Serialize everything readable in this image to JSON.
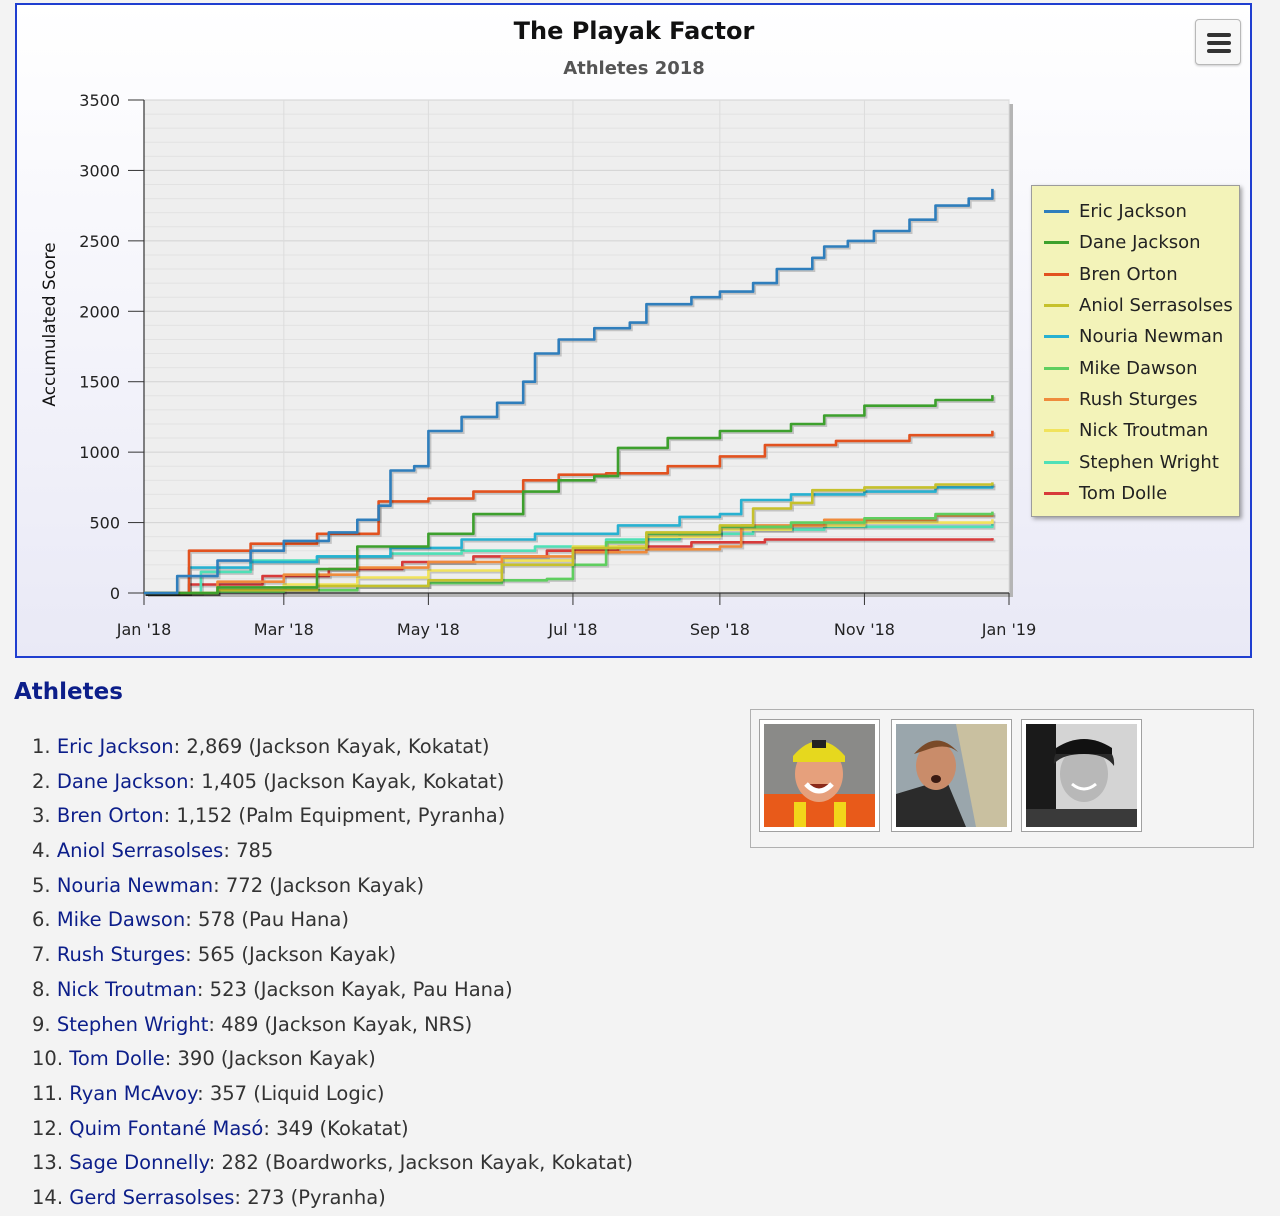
{
  "chart_box": {
    "title": "The Playak Factor",
    "subtitle": "Athletes 2018",
    "menu_icon": "hamburger-menu-icon"
  },
  "chart_data": {
    "type": "line",
    "title": "The Playak Factor",
    "subtitle": "Athletes 2018",
    "xlabel": "",
    "ylabel": "Accumulated Score",
    "x_ticks": [
      "Jan '18",
      "Mar '18",
      "May '18",
      "Jul '18",
      "Sep '18",
      "Nov '18",
      "Jan '19"
    ],
    "y_ticks": [
      0,
      500,
      1000,
      1500,
      2000,
      2500,
      3000,
      3500
    ],
    "ylim": [
      0,
      3500
    ],
    "xlim": [
      "2018-01-01",
      "2019-01-01"
    ],
    "grid": true,
    "legend_position": "right",
    "series": [
      {
        "name": "Eric Jackson",
        "color": "#2f7ebc",
        "points": [
          [
            "2018-01-01",
            0
          ],
          [
            "2018-01-15",
            120
          ],
          [
            "2018-02-01",
            230
          ],
          [
            "2018-02-15",
            300
          ],
          [
            "2018-03-01",
            370
          ],
          [
            "2018-03-20",
            430
          ],
          [
            "2018-04-01",
            520
          ],
          [
            "2018-04-10",
            620
          ],
          [
            "2018-04-15",
            870
          ],
          [
            "2018-04-25",
            900
          ],
          [
            "2018-05-01",
            1150
          ],
          [
            "2018-05-15",
            1250
          ],
          [
            "2018-05-30",
            1350
          ],
          [
            "2018-06-10",
            1500
          ],
          [
            "2018-06-15",
            1700
          ],
          [
            "2018-06-25",
            1800
          ],
          [
            "2018-07-10",
            1880
          ],
          [
            "2018-07-25",
            1920
          ],
          [
            "2018-08-01",
            2050
          ],
          [
            "2018-08-20",
            2100
          ],
          [
            "2018-09-01",
            2140
          ],
          [
            "2018-09-15",
            2200
          ],
          [
            "2018-09-25",
            2300
          ],
          [
            "2018-10-10",
            2380
          ],
          [
            "2018-10-15",
            2460
          ],
          [
            "2018-10-25",
            2500
          ],
          [
            "2018-11-05",
            2570
          ],
          [
            "2018-11-20",
            2650
          ],
          [
            "2018-12-01",
            2750
          ],
          [
            "2018-12-15",
            2800
          ],
          [
            "2018-12-25",
            2869
          ]
        ]
      },
      {
        "name": "Dane Jackson",
        "color": "#3da02d",
        "points": [
          [
            "2018-01-01",
            0
          ],
          [
            "2018-02-01",
            40
          ],
          [
            "2018-03-15",
            170
          ],
          [
            "2018-04-01",
            330
          ],
          [
            "2018-05-01",
            420
          ],
          [
            "2018-05-20",
            560
          ],
          [
            "2018-06-10",
            720
          ],
          [
            "2018-06-25",
            800
          ],
          [
            "2018-07-10",
            830
          ],
          [
            "2018-07-20",
            1030
          ],
          [
            "2018-08-10",
            1100
          ],
          [
            "2018-09-01",
            1150
          ],
          [
            "2018-10-01",
            1200
          ],
          [
            "2018-10-15",
            1260
          ],
          [
            "2018-11-01",
            1330
          ],
          [
            "2018-12-01",
            1370
          ],
          [
            "2018-12-25",
            1405
          ]
        ]
      },
      {
        "name": "Bren Orton",
        "color": "#e2521f",
        "points": [
          [
            "2018-01-01",
            0
          ],
          [
            "2018-01-20",
            300
          ],
          [
            "2018-02-15",
            350
          ],
          [
            "2018-03-15",
            420
          ],
          [
            "2018-04-10",
            650
          ],
          [
            "2018-05-01",
            670
          ],
          [
            "2018-05-20",
            720
          ],
          [
            "2018-06-10",
            800
          ],
          [
            "2018-06-25",
            840
          ],
          [
            "2018-07-15",
            850
          ],
          [
            "2018-08-10",
            900
          ],
          [
            "2018-09-01",
            970
          ],
          [
            "2018-09-20",
            1050
          ],
          [
            "2018-10-20",
            1080
          ],
          [
            "2018-11-20",
            1120
          ],
          [
            "2018-12-25",
            1152
          ]
        ]
      },
      {
        "name": "Aniol Serrasolses",
        "color": "#c6c12c",
        "points": [
          [
            "2018-01-01",
            0
          ],
          [
            "2018-02-01",
            20
          ],
          [
            "2018-03-15",
            50
          ],
          [
            "2018-05-01",
            90
          ],
          [
            "2018-06-01",
            200
          ],
          [
            "2018-07-01",
            320
          ],
          [
            "2018-08-01",
            430
          ],
          [
            "2018-09-01",
            480
          ],
          [
            "2018-09-15",
            600
          ],
          [
            "2018-10-01",
            640
          ],
          [
            "2018-10-10",
            730
          ],
          [
            "2018-11-01",
            750
          ],
          [
            "2018-12-01",
            770
          ],
          [
            "2018-12-25",
            785
          ]
        ]
      },
      {
        "name": "Nouria Newman",
        "color": "#27b1d1",
        "points": [
          [
            "2018-01-01",
            0
          ],
          [
            "2018-01-20",
            180
          ],
          [
            "2018-02-15",
            220
          ],
          [
            "2018-03-15",
            260
          ],
          [
            "2018-04-15",
            320
          ],
          [
            "2018-05-15",
            380
          ],
          [
            "2018-06-15",
            420
          ],
          [
            "2018-07-20",
            480
          ],
          [
            "2018-08-15",
            540
          ],
          [
            "2018-09-01",
            560
          ],
          [
            "2018-09-10",
            660
          ],
          [
            "2018-10-01",
            700
          ],
          [
            "2018-11-01",
            720
          ],
          [
            "2018-12-01",
            750
          ],
          [
            "2018-12-25",
            772
          ]
        ]
      },
      {
        "name": "Mike Dawson",
        "color": "#5fce5f",
        "points": [
          [
            "2018-01-01",
            0
          ],
          [
            "2018-02-01",
            10
          ],
          [
            "2018-03-01",
            20
          ],
          [
            "2018-04-01",
            50
          ],
          [
            "2018-05-01",
            70
          ],
          [
            "2018-06-01",
            90
          ],
          [
            "2018-06-20",
            100
          ],
          [
            "2018-07-01",
            200
          ],
          [
            "2018-07-15",
            360
          ],
          [
            "2018-08-01",
            420
          ],
          [
            "2018-09-01",
            470
          ],
          [
            "2018-10-01",
            500
          ],
          [
            "2018-11-01",
            530
          ],
          [
            "2018-12-01",
            560
          ],
          [
            "2018-12-25",
            578
          ]
        ]
      },
      {
        "name": "Rush Sturges",
        "color": "#ef8b3c",
        "points": [
          [
            "2018-01-01",
            0
          ],
          [
            "2018-02-01",
            80
          ],
          [
            "2018-03-01",
            130
          ],
          [
            "2018-04-01",
            180
          ],
          [
            "2018-05-01",
            220
          ],
          [
            "2018-06-01",
            260
          ],
          [
            "2018-07-01",
            290
          ],
          [
            "2018-08-01",
            310
          ],
          [
            "2018-09-01",
            330
          ],
          [
            "2018-09-10",
            480
          ],
          [
            "2018-10-15",
            520
          ],
          [
            "2018-12-01",
            550
          ],
          [
            "2018-12-25",
            565
          ]
        ]
      },
      {
        "name": "Nick Troutman",
        "color": "#f1e35c",
        "points": [
          [
            "2018-01-01",
            0
          ],
          [
            "2018-02-01",
            20
          ],
          [
            "2018-03-01",
            60
          ],
          [
            "2018-04-01",
            110
          ],
          [
            "2018-05-01",
            160
          ],
          [
            "2018-06-01",
            230
          ],
          [
            "2018-07-01",
            330
          ],
          [
            "2018-08-01",
            400
          ],
          [
            "2018-09-01",
            450
          ],
          [
            "2018-10-01",
            480
          ],
          [
            "2018-11-01",
            500
          ],
          [
            "2018-12-25",
            523
          ]
        ]
      },
      {
        "name": "Stephen Wright",
        "color": "#4fe0b7",
        "points": [
          [
            "2018-01-01",
            0
          ],
          [
            "2018-01-25",
            150
          ],
          [
            "2018-02-15",
            230
          ],
          [
            "2018-03-15",
            260
          ],
          [
            "2018-04-15",
            280
          ],
          [
            "2018-05-15",
            300
          ],
          [
            "2018-06-15",
            330
          ],
          [
            "2018-07-15",
            380
          ],
          [
            "2018-08-15",
            420
          ],
          [
            "2018-09-15",
            450
          ],
          [
            "2018-10-15",
            470
          ],
          [
            "2018-12-25",
            489
          ]
        ]
      },
      {
        "name": "Tom Dolle",
        "color": "#d73a3a",
        "points": [
          [
            "2018-01-01",
            0
          ],
          [
            "2018-01-20",
            60
          ],
          [
            "2018-02-20",
            120
          ],
          [
            "2018-03-20",
            170
          ],
          [
            "2018-04-20",
            220
          ],
          [
            "2018-05-20",
            260
          ],
          [
            "2018-06-20",
            300
          ],
          [
            "2018-07-20",
            330
          ],
          [
            "2018-08-20",
            360
          ],
          [
            "2018-09-20",
            380
          ],
          [
            "2018-12-25",
            390
          ]
        ]
      }
    ]
  },
  "athletes": {
    "heading": "Athletes",
    "list": [
      {
        "rank": "1.",
        "name": "Eric Jackson",
        "detail": ": 2,869 (Jackson Kayak, Kokatat)"
      },
      {
        "rank": "2.",
        "name": "Dane Jackson",
        "detail": ": 1,405 (Jackson Kayak, Kokatat)"
      },
      {
        "rank": "3.",
        "name": "Bren Orton",
        "detail": ": 1,152 (Palm Equipment, Pyranha)"
      },
      {
        "rank": "4.",
        "name": "Aniol Serrasolses",
        "detail": ": 785"
      },
      {
        "rank": "5.",
        "name": "Nouria Newman",
        "detail": ": 772 (Jackson Kayak)"
      },
      {
        "rank": "6.",
        "name": "Mike Dawson",
        "detail": ": 578 (Pau Hana)"
      },
      {
        "rank": "7.",
        "name": "Rush Sturges",
        "detail": ": 565 (Jackson Kayak)"
      },
      {
        "rank": "8.",
        "name": "Nick Troutman",
        "detail": ": 523 (Jackson Kayak, Pau Hana)"
      },
      {
        "rank": "9.",
        "name": "Stephen Wright",
        "detail": ": 489 (Jackson Kayak, NRS)"
      },
      {
        "rank": "10.",
        "name": "Tom Dolle",
        "detail": ": 390 (Jackson Kayak)"
      },
      {
        "rank": "11.",
        "name": "Ryan McAvoy",
        "detail": ": 357 (Liquid Logic)"
      },
      {
        "rank": "12.",
        "name": "Quim Fontané Masó",
        "detail": ": 349 (Kokatat)"
      },
      {
        "rank": "13.",
        "name": "Sage Donnelly",
        "detail": ": 282 (Boardworks, Jackson Kayak, Kokatat)"
      },
      {
        "rank": "14.",
        "name": "Gerd Serrasolses",
        "detail": ": 273 (Pyranha)"
      }
    ]
  },
  "photos": [
    {
      "icon": "athlete-photo-helmet-smiling"
    },
    {
      "icon": "athlete-photo-selfie-blurred"
    },
    {
      "icon": "athlete-photo-cap-bw"
    }
  ]
}
